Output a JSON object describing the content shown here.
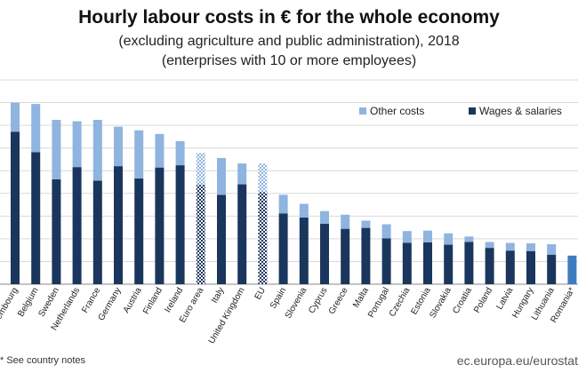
{
  "chart_data": {
    "type": "bar",
    "stacked": true,
    "title": "Hourly labour costs in € for the whole economy",
    "subtitle": [
      "(excluding agriculture and public administration), 2018",
      "(enterprises with 10 or more employees)"
    ],
    "categories": [
      "Luxembourg",
      "Belgium",
      "Sweden",
      "Netherlands",
      "France",
      "Germany",
      "Austria",
      "Finland",
      "Ireland",
      "Euro area",
      "Italy",
      "United Kingdom",
      "EU",
      "Spain",
      "Slovenia",
      "Cyprus",
      "Greece",
      "Malta",
      "Portugal",
      "Czechia",
      "Estonia",
      "Slovakia",
      "Croatia",
      "Poland",
      "Latvia",
      "Hungary",
      "Lithuania",
      "Romania*"
    ],
    "series": [
      {
        "name": "Wages & salaries",
        "color": "#1b365d",
        "values": [
          33.6,
          29.1,
          23.1,
          25.8,
          22.8,
          26.0,
          23.3,
          25.7,
          26.2,
          21.9,
          19.7,
          22.0,
          20.3,
          15.6,
          14.7,
          13.3,
          12.2,
          12.4,
          10.1,
          9.1,
          9.2,
          8.7,
          9.3,
          8.0,
          7.4,
          7.3,
          6.5,
          6.1
        ]
      },
      {
        "name": "Other costs",
        "color": "#8fb4df",
        "values": [
          6.4,
          10.6,
          13.1,
          10.1,
          13.4,
          8.7,
          10.6,
          7.4,
          5.3,
          7.0,
          8.1,
          4.6,
          6.3,
          4.1,
          3.0,
          2.8,
          3.1,
          1.6,
          3.1,
          2.6,
          2.6,
          2.5,
          1.2,
          1.3,
          1.7,
          1.7,
          2.3,
          0.2
        ]
      },
      {
        "name": "Romania (total)",
        "values": [
          null,
          null,
          null,
          null,
          null,
          null,
          null,
          null,
          null,
          null,
          null,
          null,
          null,
          null,
          null,
          null,
          null,
          null,
          null,
          null,
          null,
          null,
          null,
          null,
          null,
          null,
          null,
          6.3
        ]
      }
    ],
    "hatched_categories": [
      "Euro area",
      "EU"
    ],
    "single_color_categories": [
      "Romania*"
    ],
    "legend": [
      "Other costs",
      "Wages & salaries"
    ],
    "legend_position": "top-right",
    "ylim": [
      0,
      45
    ],
    "ytick_step": 5,
    "grid": true
  },
  "footnote": "* See country notes",
  "source": "ec.europa.eu/eurostat"
}
